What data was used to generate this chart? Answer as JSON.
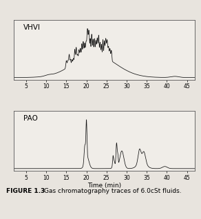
{
  "xlabel": "Time (min)",
  "xlim": [
    2,
    47
  ],
  "xticks": [
    5,
    10,
    15,
    20,
    25,
    30,
    35,
    40,
    45
  ],
  "label_vhvi": "VHVI",
  "label_pao": "PAO",
  "fig_bg": "#e8e4de",
  "panel_bg": "#f0ede8",
  "line_color": "#111111",
  "caption": "FIGURE 1.3    Gas chromatography traces of 6.0cSt fluids."
}
